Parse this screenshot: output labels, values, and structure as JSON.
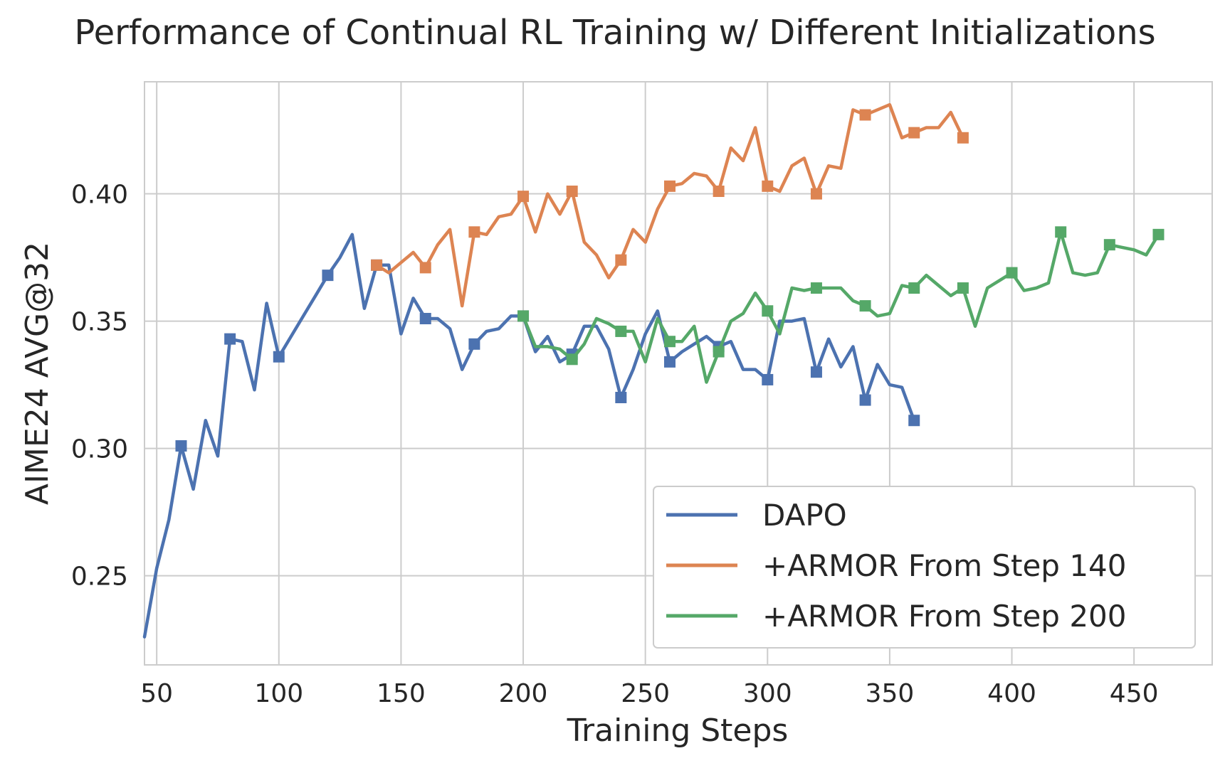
{
  "chart_data": {
    "type": "line",
    "title": "Performance of Continual RL Training w/ Different Initializations",
    "xlabel": "Training Steps",
    "ylabel": "AIME24 AVG@32",
    "xlim": [
      45,
      482
    ],
    "ylim": [
      0.215,
      0.444
    ],
    "xticks": [
      50,
      100,
      150,
      200,
      250,
      300,
      350,
      400,
      450
    ],
    "yticks": [
      0.25,
      0.3,
      0.35,
      0.4
    ],
    "xtick_labels": [
      "50",
      "100",
      "150",
      "200",
      "250",
      "300",
      "350",
      "400",
      "450"
    ],
    "ytick_labels": [
      "0.25",
      "0.30",
      "0.35",
      "0.40"
    ],
    "grid": true,
    "legend_position": "lower right",
    "series": [
      {
        "name": "DAPO",
        "color": "#4c72b0",
        "x": [
          45,
          50,
          55,
          60,
          65,
          70,
          75,
          80,
          85,
          90,
          95,
          100,
          105,
          110,
          115,
          120,
          125,
          130,
          135,
          140,
          145,
          150,
          155,
          160,
          165,
          170,
          175,
          180,
          185,
          190,
          195,
          200,
          205,
          210,
          215,
          220,
          225,
          230,
          235,
          240,
          245,
          250,
          255,
          260,
          265,
          270,
          275,
          280,
          285,
          290,
          295,
          300,
          305,
          310,
          315,
          320,
          325,
          330,
          335,
          340,
          345,
          350,
          355,
          360
        ],
        "y": [
          0.226,
          0.253,
          0.272,
          0.301,
          0.284,
          0.311,
          0.297,
          0.343,
          0.342,
          0.323,
          0.357,
          0.336,
          0.344,
          0.352,
          0.36,
          0.368,
          0.375,
          0.384,
          0.355,
          0.372,
          0.372,
          0.345,
          0.359,
          0.351,
          0.351,
          0.347,
          0.331,
          0.341,
          0.346,
          0.347,
          0.352,
          0.352,
          0.338,
          0.344,
          0.334,
          0.337,
          0.348,
          0.348,
          0.339,
          0.32,
          0.331,
          0.345,
          0.354,
          0.334,
          0.338,
          0.341,
          0.344,
          0.34,
          0.342,
          0.331,
          0.331,
          0.327,
          0.35,
          0.35,
          0.351,
          0.33,
          0.343,
          0.332,
          0.34,
          0.319,
          0.333,
          0.325,
          0.324,
          0.311
        ],
        "marker_x": [
          60,
          80,
          100,
          120,
          140,
          160,
          180,
          200,
          220,
          240,
          260,
          280,
          300,
          320,
          340,
          360
        ]
      },
      {
        "name": "+ARMOR From Step 140",
        "color": "#dd8452",
        "x": [
          140,
          145,
          150,
          155,
          160,
          165,
          170,
          175,
          180,
          185,
          190,
          195,
          200,
          205,
          210,
          215,
          220,
          225,
          230,
          235,
          240,
          245,
          250,
          255,
          260,
          265,
          270,
          275,
          280,
          285,
          290,
          295,
          300,
          305,
          310,
          315,
          320,
          325,
          330,
          335,
          340,
          345,
          350,
          355,
          360,
          365,
          370,
          375,
          380
        ],
        "y": [
          0.372,
          0.369,
          0.373,
          0.377,
          0.371,
          0.38,
          0.386,
          0.356,
          0.385,
          0.384,
          0.391,
          0.392,
          0.399,
          0.385,
          0.4,
          0.392,
          0.401,
          0.381,
          0.376,
          0.367,
          0.374,
          0.386,
          0.381,
          0.394,
          0.403,
          0.404,
          0.408,
          0.407,
          0.401,
          0.418,
          0.413,
          0.426,
          0.403,
          0.401,
          0.411,
          0.414,
          0.4,
          0.411,
          0.41,
          0.433,
          0.431,
          0.433,
          0.435,
          0.422,
          0.424,
          0.426,
          0.426,
          0.432,
          0.422
        ],
        "marker_x": [
          140,
          160,
          180,
          200,
          220,
          240,
          260,
          280,
          300,
          320,
          340,
          360,
          380
        ]
      },
      {
        "name": "+ARMOR From Step 200",
        "color": "#55a868",
        "x": [
          200,
          205,
          210,
          215,
          220,
          225,
          230,
          235,
          240,
          245,
          250,
          255,
          260,
          265,
          270,
          275,
          280,
          285,
          290,
          295,
          300,
          305,
          310,
          315,
          320,
          325,
          330,
          335,
          340,
          345,
          350,
          355,
          360,
          365,
          370,
          375,
          380,
          385,
          390,
          395,
          400,
          405,
          410,
          415,
          420,
          425,
          430,
          435,
          440,
          445,
          450,
          455,
          460
        ],
        "y": [
          0.352,
          0.34,
          0.34,
          0.339,
          0.335,
          0.341,
          0.351,
          0.349,
          0.346,
          0.346,
          0.334,
          0.351,
          0.342,
          0.342,
          0.348,
          0.326,
          0.338,
          0.35,
          0.353,
          0.361,
          0.354,
          0.345,
          0.363,
          0.362,
          0.363,
          0.363,
          0.363,
          0.358,
          0.356,
          0.352,
          0.353,
          0.364,
          0.363,
          0.368,
          0.364,
          0.36,
          0.363,
          0.348,
          0.363,
          0.366,
          0.369,
          0.362,
          0.363,
          0.365,
          0.385,
          0.369,
          0.368,
          0.369,
          0.38,
          0.379,
          0.378,
          0.376,
          0.384
        ],
        "marker_x": [
          200,
          220,
          240,
          260,
          280,
          300,
          320,
          340,
          360,
          380,
          400,
          420,
          440,
          460
        ]
      }
    ]
  }
}
